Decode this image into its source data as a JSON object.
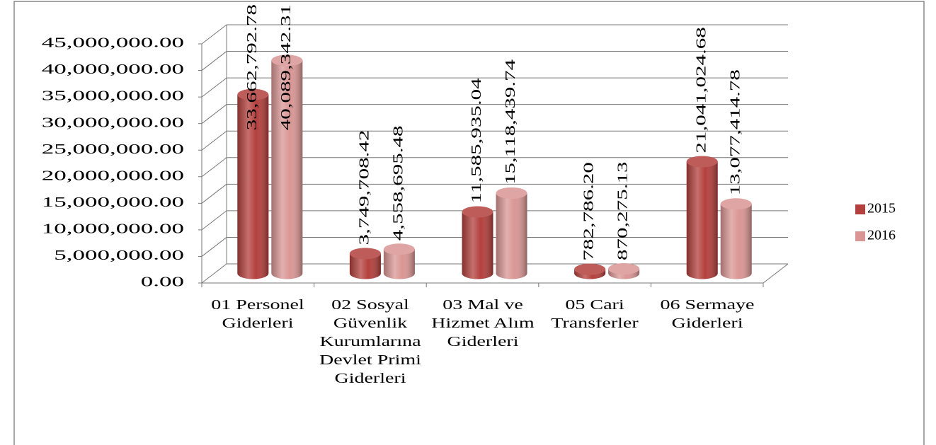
{
  "chart_data": {
    "type": "cylinder-bar",
    "categories": [
      "01 Personel Giderleri",
      "02 Sosyal Güvenlik Kurumlarına Devlet Primi Giderleri",
      "03 Mal ve Hizmet Alım Giderleri",
      "05 Cari Transferler",
      "06 Sermaye Giderleri"
    ],
    "series": [
      {
        "name": "2015",
        "color": "#b3403d",
        "values": [
          33662792.78,
          3749708.42,
          11585935.04,
          782786.2,
          21041024.68
        ],
        "value_labels": [
          "33,662,792.78",
          "3,749,708.42",
          "11,585,935.04",
          "782,786.20",
          "21,041,024.68"
        ]
      },
      {
        "name": "2016",
        "color": "#d99694",
        "values": [
          40089342.31,
          4558695.48,
          15118439.74,
          870275.13,
          13077414.78
        ],
        "value_labels": [
          "40,089,342.31",
          "4,558,695.48",
          "15,118,439.74",
          "870,275.13",
          "13,077,414.78"
        ]
      }
    ],
    "ylim": [
      0,
      45000000
    ],
    "yticks": [
      {
        "value": 0,
        "label": "0.00"
      },
      {
        "value": 5000000,
        "label": "5,000,000.00"
      },
      {
        "value": 10000000,
        "label": "10,000,000.00"
      },
      {
        "value": 15000000,
        "label": "15,000,000.00"
      },
      {
        "value": 20000000,
        "label": "20,000,000.00"
      },
      {
        "value": 25000000,
        "label": "25,000,000.00"
      },
      {
        "value": 30000000,
        "label": "30,000,000.00"
      },
      {
        "value": 35000000,
        "label": "35,000,000.00"
      },
      {
        "value": 40000000,
        "label": "40,000,000.00"
      },
      {
        "value": 45000000,
        "label": "45,000,000.00"
      }
    ],
    "grid": true,
    "legend": "right"
  }
}
